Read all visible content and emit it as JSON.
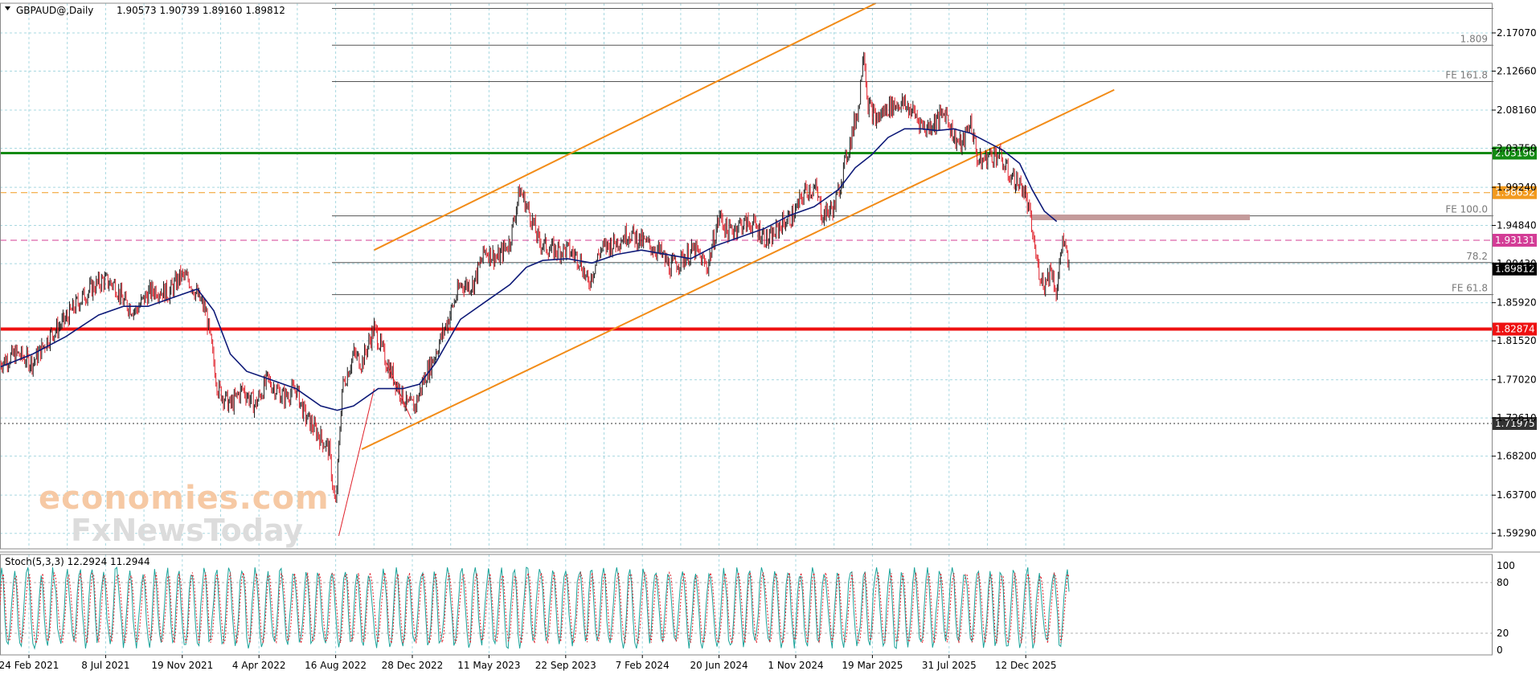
{
  "header": {
    "symbol": "GBPAUD@,Daily",
    "ohlc": "1.90573 1.90739 1.89160 1.89812"
  },
  "stoch_header": "Stoch(5,3,3) 12.2924 11.2944",
  "watermark": {
    "brand": "economies.com",
    "sub": "FxNewsToday"
  },
  "chart_data": {
    "type": "line",
    "price_ticks": [
      "2.17070",
      "2.12660",
      "2.08160",
      "2.03750",
      "1.99240",
      "1.94840",
      "1.90430",
      "1.85920",
      "1.81520",
      "1.77020",
      "1.72610",
      "1.68200",
      "1.63700",
      "1.59290"
    ],
    "price_range": [
      1.575,
      2.205
    ],
    "x_labels": [
      "24 Feb 2021",
      "8 Jul 2021",
      "19 Nov 2021",
      "4 Apr 2022",
      "16 Aug 2022",
      "28 Dec 2022",
      "11 May 2023",
      "22 Sep 2023",
      "7 Feb 2024",
      "20 Jun 2024",
      "1 Nov 2024",
      "19 Mar 2025",
      "31 Jul 2025",
      "12 Dec 2025"
    ],
    "x_range": [
      0,
      1300
    ],
    "price_path": [
      [
        0,
        1.79
      ],
      [
        20,
        1.8
      ],
      [
        40,
        1.79
      ],
      [
        60,
        1.82
      ],
      [
        80,
        1.84
      ],
      [
        95,
        1.86
      ],
      [
        110,
        1.875
      ],
      [
        125,
        1.885
      ],
      [
        140,
        1.88
      ],
      [
        150,
        1.86
      ],
      [
        165,
        1.85
      ],
      [
        180,
        1.87
      ],
      [
        190,
        1.875
      ],
      [
        205,
        1.87
      ],
      [
        220,
        1.89
      ],
      [
        230,
        1.885
      ],
      [
        250,
        1.85
      ],
      [
        265,
        1.76
      ],
      [
        280,
        1.74
      ],
      [
        295,
        1.76
      ],
      [
        310,
        1.74
      ],
      [
        325,
        1.77
      ],
      [
        345,
        1.75
      ],
      [
        360,
        1.76
      ],
      [
        370,
        1.73
      ],
      [
        385,
        1.71
      ],
      [
        400,
        1.69
      ],
      [
        408,
        1.62
      ],
      [
        416,
        1.76
      ],
      [
        430,
        1.8
      ],
      [
        440,
        1.79
      ],
      [
        455,
        1.83
      ],
      [
        470,
        1.79
      ],
      [
        480,
        1.77
      ],
      [
        495,
        1.74
      ],
      [
        505,
        1.74
      ],
      [
        515,
        1.77
      ],
      [
        525,
        1.79
      ],
      [
        545,
        1.84
      ],
      [
        560,
        1.88
      ],
      [
        575,
        1.88
      ],
      [
        590,
        1.92
      ],
      [
        605,
        1.91
      ],
      [
        620,
        1.93
      ],
      [
        632,
        1.99
      ],
      [
        645,
        1.96
      ],
      [
        655,
        1.93
      ],
      [
        670,
        1.92
      ],
      [
        690,
        1.92
      ],
      [
        705,
        1.91
      ],
      [
        715,
        1.88
      ],
      [
        730,
        1.92
      ],
      [
        750,
        1.93
      ],
      [
        765,
        1.94
      ],
      [
        780,
        1.93
      ],
      [
        800,
        1.92
      ],
      [
        815,
        1.9
      ],
      [
        830,
        1.91
      ],
      [
        845,
        1.92
      ],
      [
        860,
        1.9
      ],
      [
        875,
        1.96
      ],
      [
        885,
        1.94
      ],
      [
        900,
        1.95
      ],
      [
        915,
        1.95
      ],
      [
        935,
        1.93
      ],
      [
        950,
        1.95
      ],
      [
        965,
        1.96
      ],
      [
        980,
        1.99
      ],
      [
        992,
        1.99
      ],
      [
        1000,
        1.96
      ],
      [
        1015,
        1.97
      ],
      [
        1025,
        2.01
      ],
      [
        1035,
        2.05
      ],
      [
        1045,
        2.09
      ],
      [
        1050,
        2.16
      ],
      [
        1055,
        2.09
      ],
      [
        1065,
        2.07
      ],
      [
        1080,
        2.085
      ],
      [
        1095,
        2.09
      ],
      [
        1110,
        2.08
      ],
      [
        1125,
        2.06
      ],
      [
        1140,
        2.07
      ],
      [
        1150,
        2.08
      ],
      [
        1160,
        2.05
      ],
      [
        1170,
        2.04
      ],
      [
        1180,
        2.07
      ],
      [
        1190,
        2.02
      ],
      [
        1205,
        2.03
      ],
      [
        1215,
        2.03
      ],
      [
        1225,
        2.01
      ],
      [
        1235,
        2.0
      ],
      [
        1245,
        1.99
      ],
      [
        1252,
        1.96
      ],
      [
        1262,
        1.9
      ],
      [
        1270,
        1.88
      ],
      [
        1278,
        1.9
      ],
      [
        1285,
        1.87
      ],
      [
        1292,
        1.935
      ],
      [
        1300,
        1.898
      ]
    ],
    "ma_path": [
      [
        0,
        1.785
      ],
      [
        40,
        1.8
      ],
      [
        80,
        1.82
      ],
      [
        120,
        1.845
      ],
      [
        150,
        1.855
      ],
      [
        180,
        1.855
      ],
      [
        210,
        1.865
      ],
      [
        240,
        1.875
      ],
      [
        260,
        1.85
      ],
      [
        280,
        1.8
      ],
      [
        300,
        1.78
      ],
      [
        330,
        1.77
      ],
      [
        360,
        1.76
      ],
      [
        390,
        1.74
      ],
      [
        410,
        1.735
      ],
      [
        430,
        1.74
      ],
      [
        460,
        1.76
      ],
      [
        490,
        1.76
      ],
      [
        510,
        1.765
      ],
      [
        530,
        1.79
      ],
      [
        560,
        1.84
      ],
      [
        590,
        1.86
      ],
      [
        620,
        1.88
      ],
      [
        640,
        1.9
      ],
      [
        660,
        1.908
      ],
      [
        690,
        1.91
      ],
      [
        720,
        1.905
      ],
      [
        750,
        1.915
      ],
      [
        780,
        1.92
      ],
      [
        810,
        1.915
      ],
      [
        840,
        1.91
      ],
      [
        870,
        1.925
      ],
      [
        900,
        1.935
      ],
      [
        930,
        1.945
      ],
      [
        960,
        1.96
      ],
      [
        990,
        1.97
      ],
      [
        1020,
        1.99
      ],
      [
        1040,
        2.015
      ],
      [
        1060,
        2.03
      ],
      [
        1080,
        2.05
      ],
      [
        1100,
        2.06
      ],
      [
        1120,
        2.06
      ],
      [
        1140,
        2.058
      ],
      [
        1160,
        2.06
      ],
      [
        1180,
        2.055
      ],
      [
        1200,
        2.045
      ],
      [
        1220,
        2.035
      ],
      [
        1240,
        2.02
      ],
      [
        1255,
        1.99
      ],
      [
        1270,
        1.965
      ],
      [
        1285,
        1.953
      ]
    ],
    "stoch_ticks": [
      "100",
      "80",
      "20",
      "0"
    ],
    "stoch_range": [
      0,
      100
    ],
    "channel": {
      "upper": [
        [
          455,
          1.92
        ],
        [
          1065,
          2.205
        ]
      ],
      "lower": [
        [
          440,
          1.69
        ],
        [
          1355,
          2.105
        ]
      ]
    },
    "horizontal_levels": [
      {
        "value": 2.03196,
        "label": "2.03196",
        "color": "#138a13",
        "style": "solid-thick"
      },
      {
        "value": 1.98632,
        "label": "1.98632",
        "color": "#f29a1e",
        "style": "dash"
      },
      {
        "value": 1.93131,
        "label": "1.93131",
        "color": "#d33c96",
        "style": "dash"
      },
      {
        "value": 1.89812,
        "label": "1.89812",
        "color": "#000000",
        "style": "current"
      },
      {
        "value": 1.82874,
        "label": "1.82874",
        "color": "#ee1111",
        "style": "solid-heavy"
      },
      {
        "value": 1.71975,
        "label": "1.71975",
        "color": "#333333",
        "style": "dot"
      }
    ],
    "fibo_levels": [
      {
        "value": 2.199,
        "label": ""
      },
      {
        "value": 2.1565,
        "label": "1.809"
      },
      {
        "value": 2.1145,
        "label": "FE 161.8"
      },
      {
        "value": 1.9595,
        "label": "FE 100.0"
      },
      {
        "value": 1.9055,
        "label": "78.2"
      },
      {
        "value": 1.8685,
        "label": "FE 61.8"
      }
    ],
    "zone": {
      "from": 1.9545,
      "to": 1.961,
      "x_start": 1255,
      "x_end": 1520,
      "color": "#c49b9b"
    },
    "colors": {
      "candles_up": "#1b1b1b",
      "candles_down": "#e0202a",
      "ma": "#0e1a78",
      "channel": "#f28c18",
      "grid": "#a8d8e0"
    }
  }
}
